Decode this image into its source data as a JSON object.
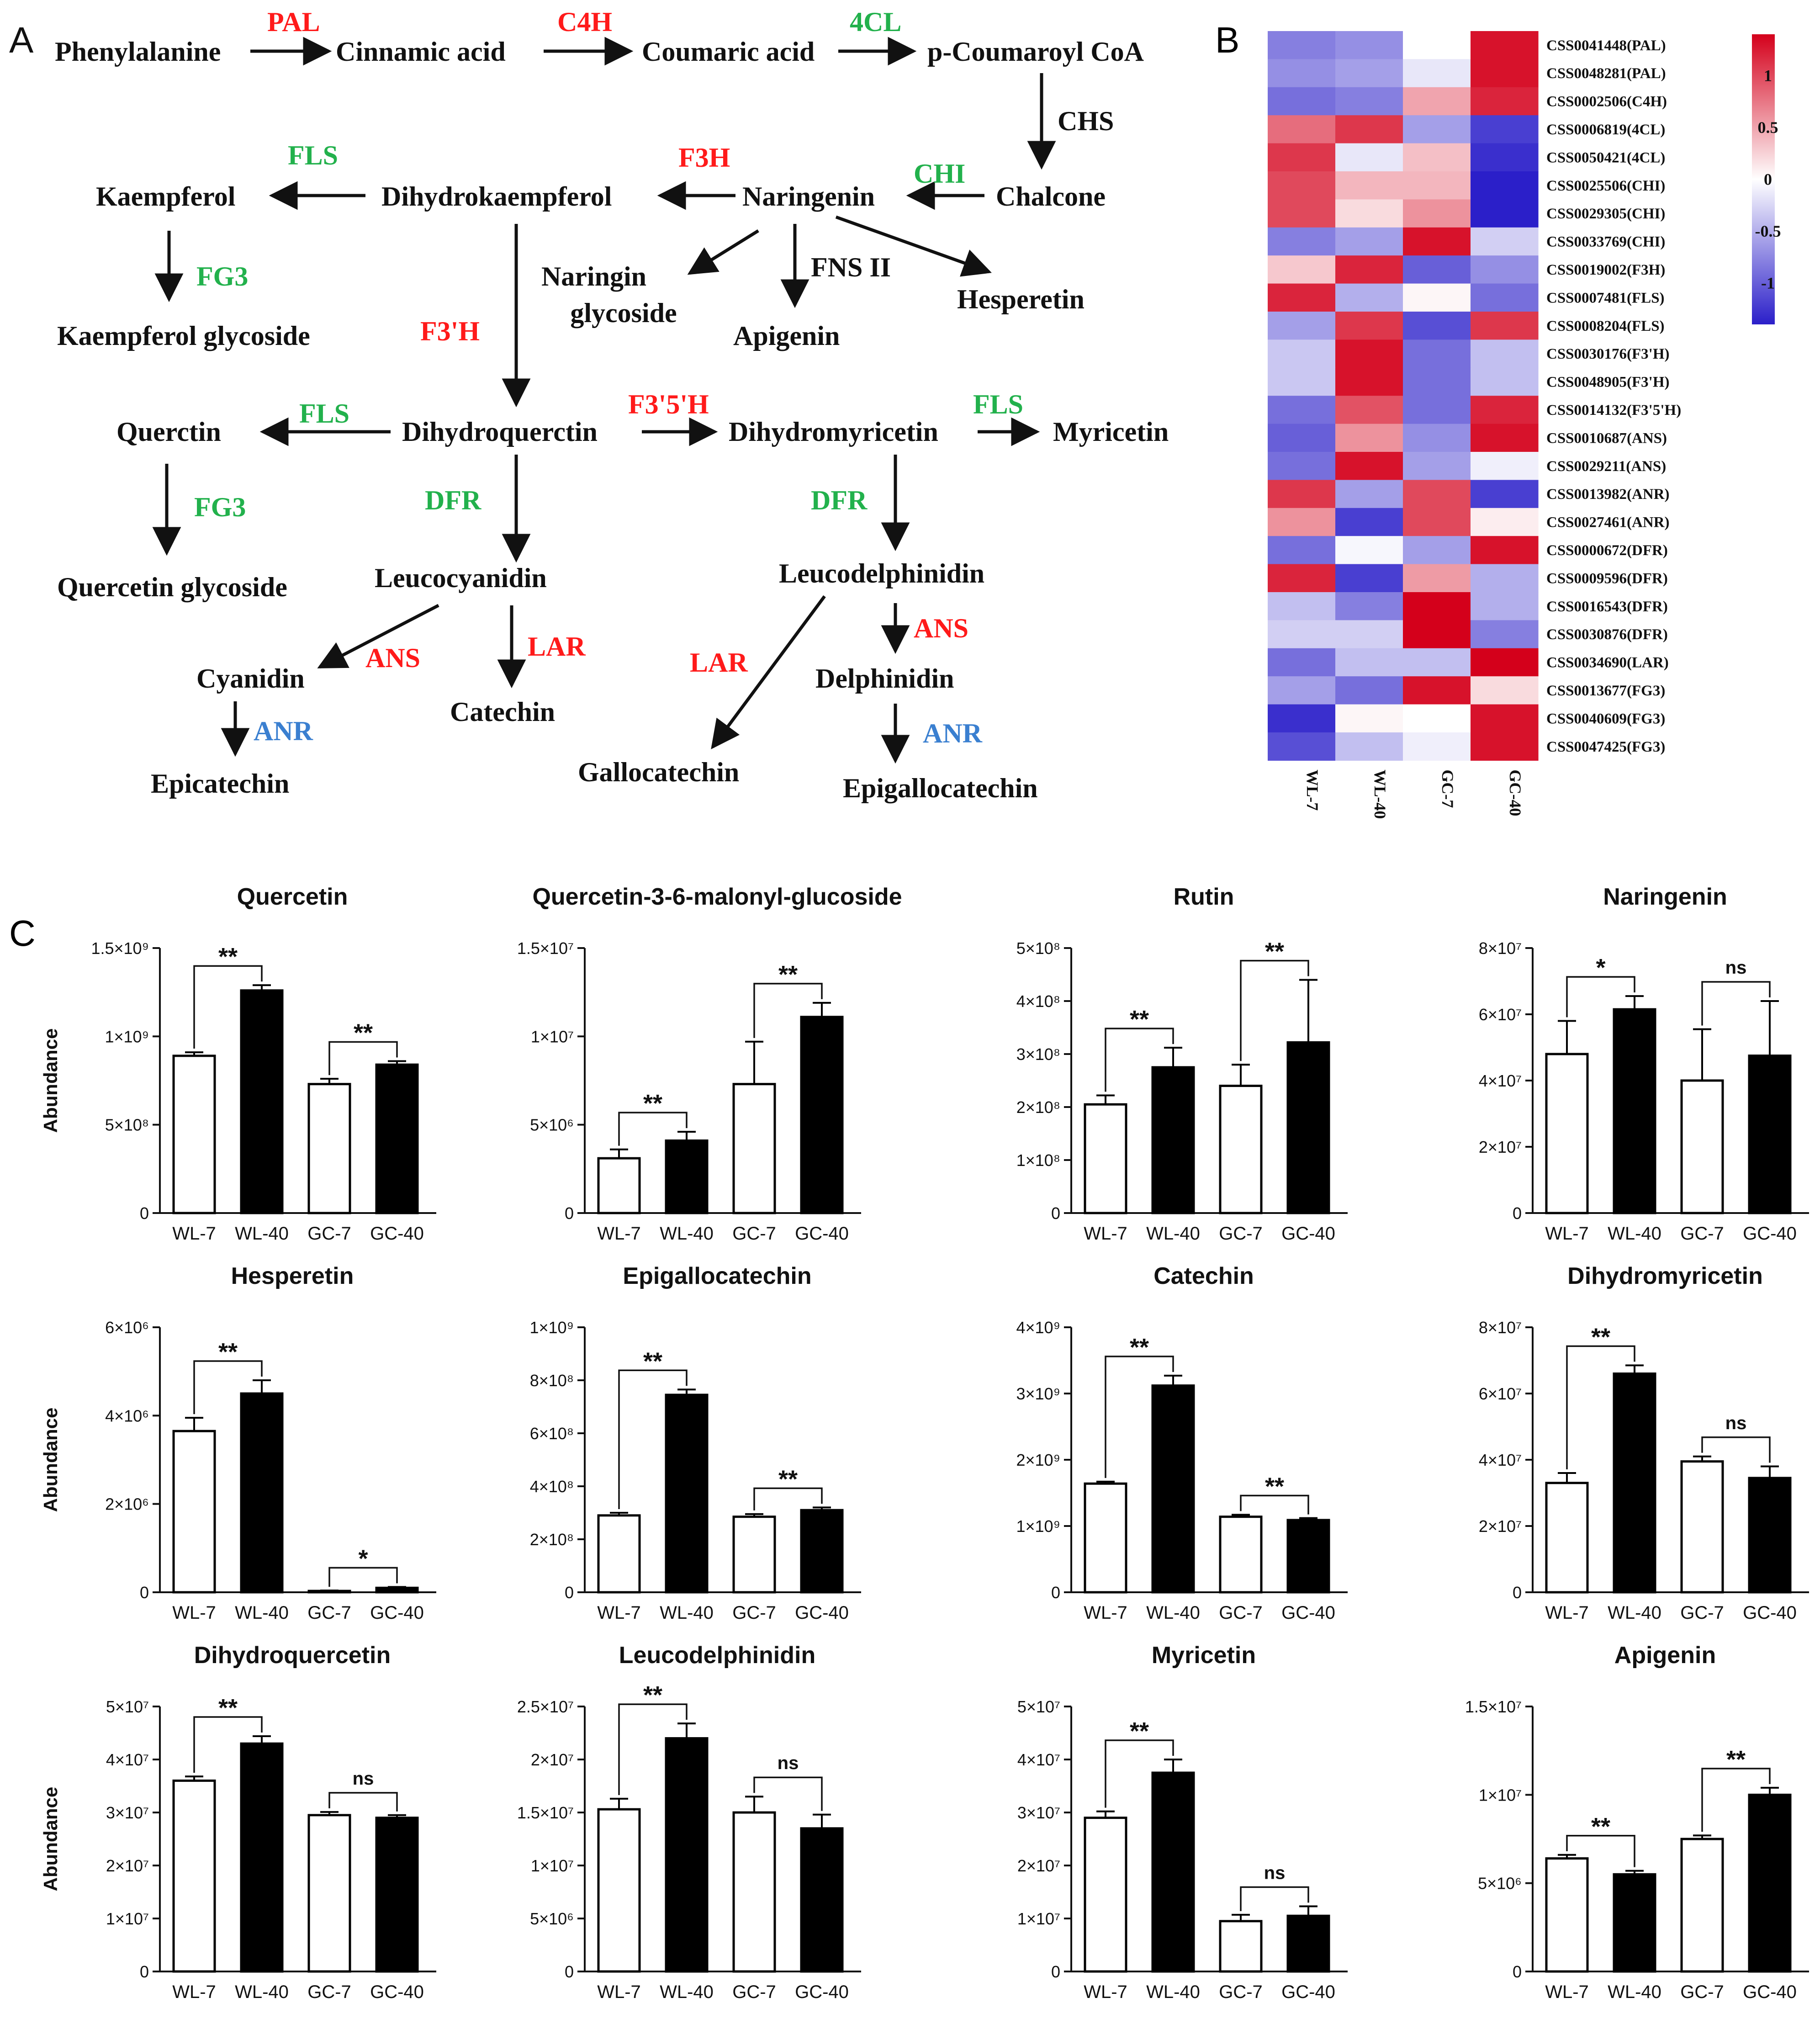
{
  "panel_labels": {
    "a": "A",
    "b": "B",
    "c": "C"
  },
  "pathway": {
    "compounds": {
      "phenylalanine": "Phenylalanine",
      "cinnamic": "Cinnamic acid",
      "coumaric": "Coumaric acid",
      "coumaroyl": "p-Coumaroyl CoA",
      "chalcone": "Chalcone",
      "naringenin": "Naringenin",
      "dihydrokaempferol": "Dihydrokaempferol",
      "kaempferol": "Kaempferol",
      "kaempferol_glycoside": "Kaempferol glycoside",
      "naringin_glycoside_1": "Naringin",
      "naringin_glycoside_2": "glycoside",
      "apigenin": "Apigenin",
      "hesperetin": "Hesperetin",
      "dihydroquercetin": "Dihydroquerctin",
      "quercetin": "Querctin",
      "quercetin_glycoside": "Quercetin glycoside",
      "dihydromyricetin": "Dihydromyricetin",
      "myricetin": "Myricetin",
      "leucocyanidin": "Leucocyanidin",
      "leucodelphinidin": "Leucodelphinidin",
      "cyanidin": "Cyanidin",
      "catechin": "Catechin",
      "epicatechin": "Epicatechin",
      "gallocatechin": "Gallocatechin",
      "delphinidin": "Delphinidin",
      "epigallocatechin": "Epigallocatechin"
    },
    "enzymes": {
      "pal": "PAL",
      "c4h": "C4H",
      "cl4": "4CL",
      "chs": "CHS",
      "chi": "CHI",
      "f3h": "F3H",
      "fls1": "FLS",
      "fg3_1": "FG3",
      "fns": "FNS II",
      "f3ph": "F3'H",
      "fls2": "FLS",
      "f35h": "F3'5'H",
      "fls3": "FLS",
      "fg3_2": "FG3",
      "dfr1": "DFR",
      "dfr2": "DFR",
      "ans1": "ANS",
      "lar1": "LAR",
      "lar2": "LAR",
      "ans2": "ANS",
      "anr1": "ANR",
      "anr2": "ANR"
    },
    "colors": {
      "red": "#ff1a1a",
      "green": "#22b14c",
      "blue": "#3a7fd0",
      "black": "#111111"
    }
  },
  "heatmap": {
    "genes": [
      "CSS0041448(PAL)",
      "CSS0048281(PAL)",
      "CSS0002506(C4H)",
      "CSS0006819(4CL)",
      "CSS0050421(4CL)",
      "CSS0025506(CHI)",
      "CSS0029305(CHI)",
      "CSS0033769(CHI)",
      "CSS0019002(F3H)",
      "CSS0007481(FLS)",
      "CSS0008204(FLS)",
      "CSS0030176(F3'H)",
      "CSS0048905(F3'H)",
      "CSS0014132(F3'5'H)",
      "CSS0010687(ANS)",
      "CSS0029211(ANS)",
      "CSS0013982(ANR)",
      "CSS0027461(ANR)",
      "CSS0000672(DFR)",
      "CSS0009596(DFR)",
      "CSS0016543(DFR)",
      "CSS0030876(DFR)",
      "CSS0034690(LAR)",
      "CSS0013677(FG3)",
      "CSS0040609(FG3)",
      "CSS0047425(FG3)"
    ],
    "samples": [
      "WL-7",
      "WL-40",
      "GC-7",
      "GC-40"
    ],
    "values": [
      [
        -0.8,
        -0.7,
        0.0,
        1.3
      ],
      [
        -0.7,
        -0.6,
        -0.15,
        1.3
      ],
      [
        -0.9,
        -0.8,
        0.5,
        1.2
      ],
      [
        0.8,
        1.1,
        -0.6,
        -1.2
      ],
      [
        1.1,
        -0.15,
        0.35,
        -1.3
      ],
      [
        1.0,
        0.4,
        0.4,
        -1.4
      ],
      [
        1.0,
        0.2,
        0.6,
        -1.4
      ],
      [
        -0.8,
        -0.6,
        1.3,
        -0.3
      ],
      [
        0.3,
        1.2,
        -1.0,
        -0.7
      ],
      [
        1.2,
        -0.5,
        0.05,
        -0.9
      ],
      [
        -0.6,
        1.1,
        -1.1,
        1.1
      ],
      [
        -0.35,
        1.3,
        -0.9,
        -0.4
      ],
      [
        -0.35,
        1.3,
        -0.9,
        -0.4
      ],
      [
        -0.9,
        0.95,
        -0.9,
        1.2
      ],
      [
        -1.0,
        0.6,
        -0.7,
        1.3
      ],
      [
        -0.9,
        1.3,
        -0.6,
        -0.1
      ],
      [
        1.1,
        -0.6,
        1.0,
        -1.2
      ],
      [
        0.6,
        -1.2,
        1.0,
        0.1
      ],
      [
        -0.9,
        -0.05,
        -0.6,
        1.3
      ],
      [
        1.2,
        -1.2,
        0.55,
        -0.5
      ],
      [
        -0.4,
        -0.8,
        1.4,
        -0.5
      ],
      [
        -0.3,
        -0.3,
        1.4,
        -0.8
      ],
      [
        -0.9,
        -0.4,
        -0.4,
        1.4
      ],
      [
        -0.6,
        -0.9,
        1.3,
        0.2
      ],
      [
        -1.3,
        0.05,
        0.0,
        1.3
      ],
      [
        -1.1,
        -0.4,
        -0.1,
        1.3
      ]
    ],
    "scale": {
      "min": -1.4,
      "max": 1.4,
      "ticks": [
        1,
        0.5,
        0,
        -0.5,
        -1
      ],
      "tick_labels": [
        "1",
        "0.5",
        "0",
        "-0.5",
        "-1"
      ]
    },
    "colors": {
      "low": "#2b1fc9",
      "mid": "#ffffff",
      "high": "#d4001b"
    }
  },
  "chart_data": [
    {
      "type": "bar",
      "title": "Quercetin",
      "categories": [
        "WL-7",
        "WL-40",
        "GC-7",
        "GC-40"
      ],
      "values": [
        890000000,
        1260000000,
        730000000,
        840000000
      ],
      "errors": [
        20000000,
        30000000,
        30000000,
        20000000
      ],
      "ylabel": "Abundance",
      "ylim": [
        0,
        1500000000
      ],
      "ticks": [
        0,
        500000000,
        1000000000,
        1500000000
      ],
      "tick_labels": [
        "0",
        "5×10⁸",
        "1×10⁹",
        "1.5×10⁹"
      ],
      "sig": [
        {
          "pair": [
            0,
            1
          ],
          "label": "**"
        },
        {
          "pair": [
            2,
            3
          ],
          "label": "**"
        }
      ]
    },
    {
      "type": "bar",
      "title": "Quercetin-3-6-malonyl-glucoside",
      "categories": [
        "WL-7",
        "WL-40",
        "GC-7",
        "GC-40"
      ],
      "values": [
        3100000,
        4100000,
        7300000,
        11100000
      ],
      "errors": [
        500000,
        500000,
        2400000,
        800000
      ],
      "ylabel": "",
      "ylim": [
        0,
        15000000
      ],
      "ticks": [
        0,
        5000000,
        10000000,
        15000000
      ],
      "tick_labels": [
        "0",
        "5×10⁶",
        "1×10⁷",
        "1.5×10⁷"
      ],
      "sig": [
        {
          "pair": [
            0,
            1
          ],
          "label": "**"
        },
        {
          "pair": [
            2,
            3
          ],
          "label": "**"
        }
      ]
    },
    {
      "type": "bar",
      "title": "Rutin",
      "categories": [
        "WL-7",
        "WL-40",
        "GC-7",
        "GC-40"
      ],
      "values": [
        205000000,
        275000000,
        240000000,
        322000000
      ],
      "errors": [
        17000000,
        37000000,
        40000000,
        118000000
      ],
      "ylabel": "",
      "ylim": [
        0,
        500000000
      ],
      "ticks": [
        0,
        100000000,
        200000000,
        300000000,
        400000000,
        500000000
      ],
      "tick_labels": [
        "0",
        "1×10⁸",
        "2×10⁸",
        "3×10⁸",
        "4×10⁸",
        "5×10⁸"
      ],
      "sig": [
        {
          "pair": [
            0,
            1
          ],
          "label": "**"
        },
        {
          "pair": [
            2,
            3
          ],
          "label": "**"
        }
      ]
    },
    {
      "type": "bar",
      "title": "Naringenin",
      "categories": [
        "WL-7",
        "WL-40",
        "GC-7",
        "GC-40"
      ],
      "values": [
        48000000,
        61500000,
        40000000,
        47500000
      ],
      "errors": [
        10000000,
        4000000,
        15500000,
        16500000
      ],
      "ylabel": "",
      "ylim": [
        0,
        80000000
      ],
      "ticks": [
        0,
        20000000,
        40000000,
        60000000,
        80000000
      ],
      "tick_labels": [
        "0",
        "2×10⁷",
        "4×10⁷",
        "6×10⁷",
        "8×10⁷"
      ],
      "sig": [
        {
          "pair": [
            0,
            1
          ],
          "label": "*"
        },
        {
          "pair": [
            2,
            3
          ],
          "label": "ns"
        }
      ]
    },
    {
      "type": "bar",
      "title": "Hesperetin",
      "categories": [
        "WL-7",
        "WL-40",
        "GC-7",
        "GC-40"
      ],
      "values": [
        3650000,
        4500000,
        30000,
        100000
      ],
      "errors": [
        300000,
        300000,
        10000,
        20000
      ],
      "ylabel": "Abundance",
      "ylim": [
        0,
        6000000
      ],
      "ticks": [
        0,
        2000000,
        4000000,
        6000000
      ],
      "tick_labels": [
        "0",
        "2×10⁶",
        "4×10⁶",
        "6×10⁶"
      ],
      "sig": [
        {
          "pair": [
            0,
            1
          ],
          "label": "**"
        },
        {
          "pair": [
            2,
            3
          ],
          "label": "*"
        }
      ]
    },
    {
      "type": "bar",
      "title": "Epigallocatechin",
      "categories": [
        "WL-7",
        "WL-40",
        "GC-7",
        "GC-40"
      ],
      "values": [
        290000000,
        745000000,
        285000000,
        310000000
      ],
      "errors": [
        10000000,
        20000000,
        10000000,
        10000000
      ],
      "ylabel": "",
      "ylim": [
        0,
        1000000000
      ],
      "ticks": [
        0,
        200000000,
        400000000,
        600000000,
        800000000,
        1000000000
      ],
      "tick_labels": [
        "0",
        "2×10⁸",
        "4×10⁸",
        "6×10⁸",
        "8×10⁸",
        "1×10⁹"
      ],
      "sig": [
        {
          "pair": [
            0,
            1
          ],
          "label": "**"
        },
        {
          "pair": [
            2,
            3
          ],
          "label": "**"
        }
      ]
    },
    {
      "type": "bar",
      "title": "Catechin",
      "categories": [
        "WL-7",
        "WL-40",
        "GC-7",
        "GC-40"
      ],
      "values": [
        1640000000,
        3120000000,
        1140000000,
        1090000000
      ],
      "errors": [
        30000000,
        150000000,
        30000000,
        30000000
      ],
      "ylabel": "",
      "ylim": [
        0,
        4000000000
      ],
      "ticks": [
        0,
        1000000000,
        2000000000,
        3000000000,
        4000000000
      ],
      "tick_labels": [
        "0",
        "1×10⁹",
        "2×10⁹",
        "3×10⁹",
        "4×10⁹"
      ],
      "sig": [
        {
          "pair": [
            0,
            1
          ],
          "label": "**"
        },
        {
          "pair": [
            2,
            3
          ],
          "label": "**"
        }
      ]
    },
    {
      "type": "bar",
      "title": "Dihydromyricetin",
      "categories": [
        "WL-7",
        "WL-40",
        "GC-7",
        "GC-40"
      ],
      "values": [
        33000000,
        66000000,
        39500000,
        34500000
      ],
      "errors": [
        3000000,
        2500000,
        1500000,
        3500000
      ],
      "ylabel": "",
      "ylim": [
        0,
        80000000
      ],
      "ticks": [
        0,
        20000000,
        40000000,
        60000000,
        80000000
      ],
      "tick_labels": [
        "0",
        "2×10⁷",
        "4×10⁷",
        "6×10⁷",
        "8×10⁷"
      ],
      "sig": [
        {
          "pair": [
            0,
            1
          ],
          "label": "**"
        },
        {
          "pair": [
            2,
            3
          ],
          "label": "ns"
        }
      ]
    },
    {
      "type": "bar",
      "title": "Dihydroquercetin",
      "categories": [
        "WL-7",
        "WL-40",
        "GC-7",
        "GC-40"
      ],
      "values": [
        36000000,
        43000000,
        29500000,
        29000000
      ],
      "errors": [
        800000,
        1400000,
        600000,
        500000
      ],
      "ylabel": "Abundance",
      "ylim": [
        0,
        50000000
      ],
      "ticks": [
        0,
        10000000,
        20000000,
        30000000,
        40000000,
        50000000
      ],
      "tick_labels": [
        "0",
        "1×10⁷",
        "2×10⁷",
        "3×10⁷",
        "4×10⁷",
        "5×10⁷"
      ],
      "sig": [
        {
          "pair": [
            0,
            1
          ],
          "label": "**"
        },
        {
          "pair": [
            2,
            3
          ],
          "label": "ns"
        }
      ]
    },
    {
      "type": "bar",
      "title": "Leucodelphinidin",
      "categories": [
        "WL-7",
        "WL-40",
        "GC-7",
        "GC-40"
      ],
      "values": [
        15300000,
        22000000,
        15000000,
        13500000
      ],
      "errors": [
        1000000,
        1400000,
        1500000,
        1300000
      ],
      "ylabel": "",
      "ylim": [
        0,
        25000000
      ],
      "ticks": [
        0,
        5000000,
        10000000,
        15000000,
        20000000,
        25000000
      ],
      "tick_labels": [
        "0",
        "5×10⁶",
        "1×10⁷",
        "1.5×10⁷",
        "2×10⁷",
        "2.5×10⁷"
      ],
      "sig": [
        {
          "pair": [
            0,
            1
          ],
          "label": "**"
        },
        {
          "pair": [
            2,
            3
          ],
          "label": "ns"
        }
      ]
    },
    {
      "type": "bar",
      "title": "Myricetin",
      "categories": [
        "WL-7",
        "WL-40",
        "GC-7",
        "GC-40"
      ],
      "values": [
        29000000,
        37500000,
        9500000,
        10500000
      ],
      "errors": [
        1200000,
        2500000,
        1200000,
        1800000
      ],
      "ylabel": "",
      "ylim": [
        0,
        50000000
      ],
      "ticks": [
        0,
        10000000,
        20000000,
        30000000,
        40000000,
        50000000
      ],
      "tick_labels": [
        "0",
        "1×10⁷",
        "2×10⁷",
        "3×10⁷",
        "4×10⁷",
        "5×10⁷"
      ],
      "sig": [
        {
          "pair": [
            0,
            1
          ],
          "label": "**"
        },
        {
          "pair": [
            2,
            3
          ],
          "label": "ns"
        }
      ]
    },
    {
      "type": "bar",
      "title": "Apigenin",
      "categories": [
        "WL-7",
        "WL-40",
        "GC-7",
        "GC-40"
      ],
      "values": [
        6400000,
        5500000,
        7500000,
        10000000
      ],
      "errors": [
        200000,
        200000,
        200000,
        400000
      ],
      "ylabel": "",
      "ylim": [
        0,
        15000000
      ],
      "ticks": [
        0,
        5000000,
        10000000,
        15000000
      ],
      "tick_labels": [
        "0",
        "5×10⁶",
        "1×10⁷",
        "1.5×10⁷"
      ],
      "sig": [
        {
          "pair": [
            0,
            1
          ],
          "label": "**"
        },
        {
          "pair": [
            2,
            3
          ],
          "label": "**"
        }
      ]
    }
  ]
}
